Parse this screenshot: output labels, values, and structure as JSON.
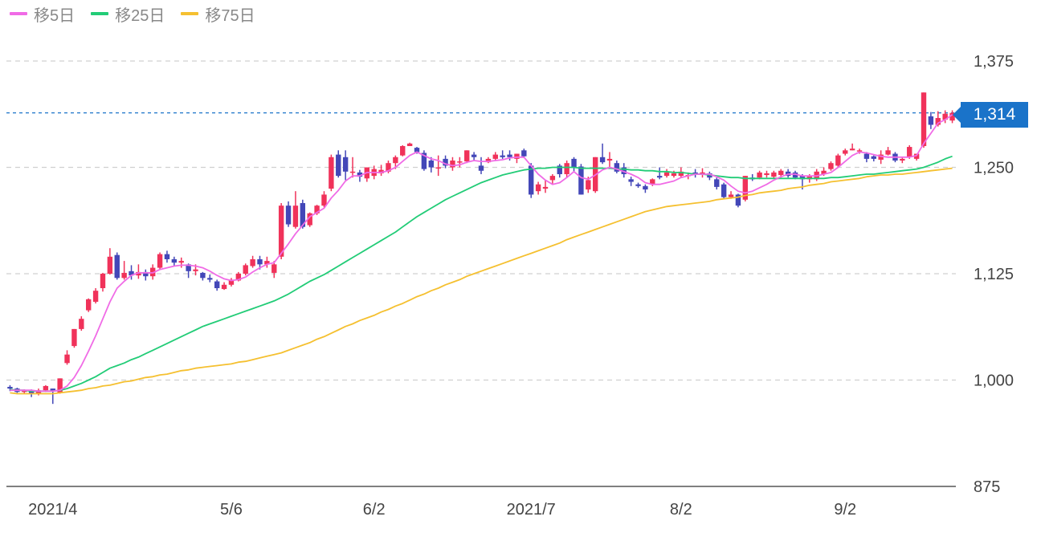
{
  "legend": [
    {
      "label": "移5日",
      "color": "#f06be6"
    },
    {
      "label": "移25日",
      "color": "#22cc77"
    },
    {
      "label": "移75日",
      "color": "#f5c030"
    }
  ],
  "current_price_label": "1,314",
  "colors": {
    "up": "#f0325a",
    "down": "#4347b8",
    "ma5": "#f06be6",
    "ma25": "#22cc77",
    "ma75": "#f5c030",
    "price_line": "#1a73c9",
    "grid": "#d0d0d0"
  },
  "chart_data": {
    "type": "candlestick",
    "ylim": [
      875,
      1375
    ],
    "y_ticks": [
      "1,375",
      "1,250",
      "1,125",
      "1,000",
      "875"
    ],
    "y_tick_values": [
      1375,
      1250,
      1125,
      1000,
      875
    ],
    "x_tick_labels": [
      "2021/4",
      "5/6",
      "6/2",
      "2021/7",
      "8/2",
      "9/2"
    ],
    "x_tick_index": [
      6,
      31,
      51,
      73,
      94,
      117
    ],
    "current_price": 1314,
    "candles": [
      [
        992,
        990,
        994,
        987
      ],
      [
        990,
        986,
        991,
        985
      ],
      [
        986,
        988,
        989,
        984
      ],
      [
        988,
        984,
        989,
        980
      ],
      [
        984,
        988,
        990,
        982
      ],
      [
        988,
        993,
        994,
        986
      ],
      [
        990,
        987,
        990,
        972
      ],
      [
        985,
        1002,
        1002,
        984
      ],
      [
        1020,
        1030,
        1035,
        1018
      ],
      [
        1040,
        1060,
        1060,
        1038
      ],
      [
        1060,
        1072,
        1075,
        1058
      ],
      [
        1082,
        1095,
        1096,
        1080
      ],
      [
        1092,
        1105,
        1108,
        1090
      ],
      [
        1108,
        1125,
        1126,
        1104
      ],
      [
        1125,
        1145,
        1155,
        1124
      ],
      [
        1147,
        1120,
        1150,
        1118
      ],
      [
        1120,
        1126,
        1140,
        1118
      ],
      [
        1128,
        1123,
        1135,
        1118
      ],
      [
        1123,
        1127,
        1136,
        1119
      ],
      [
        1127,
        1122,
        1130,
        1117
      ],
      [
        1122,
        1132,
        1136,
        1118
      ],
      [
        1132,
        1148,
        1150,
        1130
      ],
      [
        1148,
        1142,
        1152,
        1138
      ],
      [
        1142,
        1138,
        1145,
        1134
      ],
      [
        1138,
        1140,
        1144,
        1132
      ],
      [
        1136,
        1128,
        1137,
        1120
      ],
      [
        1128,
        1130,
        1136,
        1123
      ],
      [
        1126,
        1120,
        1127,
        1117
      ],
      [
        1120,
        1118,
        1124,
        1115
      ],
      [
        1116,
        1108,
        1118,
        1105
      ],
      [
        1107,
        1112,
        1115,
        1106
      ],
      [
        1112,
        1118,
        1120,
        1110
      ],
      [
        1117,
        1125,
        1127,
        1116
      ],
      [
        1125,
        1135,
        1137,
        1123
      ],
      [
        1134,
        1142,
        1146,
        1132
      ],
      [
        1142,
        1136,
        1146,
        1130
      ],
      [
        1136,
        1140,
        1145,
        1132
      ],
      [
        1126,
        1136,
        1140,
        1120
      ],
      [
        1145,
        1205,
        1208,
        1142
      ],
      [
        1205,
        1183,
        1210,
        1180
      ],
      [
        1180,
        1205,
        1222,
        1178
      ],
      [
        1208,
        1180,
        1212,
        1178
      ],
      [
        1182,
        1196,
        1197,
        1180
      ],
      [
        1196,
        1205,
        1206,
        1194
      ],
      [
        1205,
        1218,
        1222,
        1203
      ],
      [
        1225,
        1262,
        1265,
        1222
      ],
      [
        1265,
        1240,
        1270,
        1238
      ],
      [
        1262,
        1245,
        1270,
        1235
      ],
      [
        1245,
        1245,
        1262,
        1238
      ],
      [
        1244,
        1239,
        1247,
        1233
      ],
      [
        1237,
        1250,
        1250,
        1233
      ],
      [
        1240,
        1248,
        1252,
        1236
      ],
      [
        1243,
        1247,
        1253,
        1240
      ],
      [
        1245,
        1255,
        1258,
        1243
      ],
      [
        1255,
        1262,
        1264,
        1248
      ],
      [
        1264,
        1275,
        1276,
        1263
      ],
      [
        1275,
        1278,
        1279,
        1276
      ],
      [
        1273,
        1268,
        1274,
        1266
      ],
      [
        1267,
        1248,
        1270,
        1246
      ],
      [
        1258,
        1250,
        1262,
        1244
      ],
      [
        1250,
        1250,
        1264,
        1240
      ],
      [
        1260,
        1252,
        1264,
        1249
      ],
      [
        1250,
        1258,
        1262,
        1246
      ],
      [
        1256,
        1257,
        1262,
        1250
      ],
      [
        1257,
        1270,
        1270,
        1255
      ],
      [
        1265,
        1262,
        1268,
        1258
      ],
      [
        1252,
        1246,
        1262,
        1242
      ],
      [
        1256,
        1260,
        1262,
        1255
      ],
      [
        1260,
        1265,
        1268,
        1258
      ],
      [
        1264,
        1262,
        1270,
        1260
      ],
      [
        1265,
        1262,
        1270,
        1258
      ],
      [
        1260,
        1266,
        1266,
        1255
      ],
      [
        1270,
        1263,
        1272,
        1261
      ],
      [
        1252,
        1218,
        1255,
        1214
      ],
      [
        1222,
        1230,
        1233,
        1218
      ],
      [
        1225,
        1227,
        1235,
        1220
      ],
      [
        1235,
        1240,
        1242,
        1230
      ],
      [
        1252,
        1242,
        1254,
        1238
      ],
      [
        1242,
        1255,
        1258,
        1238
      ],
      [
        1260,
        1250,
        1262,
        1244
      ],
      [
        1251,
        1218,
        1254,
        1218
      ],
      [
        1224,
        1235,
        1239,
        1220
      ],
      [
        1222,
        1262,
        1262,
        1220
      ],
      [
        1262,
        1256,
        1278,
        1254
      ],
      [
        1258,
        1260,
        1268,
        1248
      ],
      [
        1255,
        1245,
        1258,
        1243
      ],
      [
        1250,
        1242,
        1255,
        1238
      ],
      [
        1236,
        1233,
        1239,
        1228
      ],
      [
        1230,
        1228,
        1232,
        1226
      ],
      [
        1228,
        1224,
        1230,
        1220
      ],
      [
        1230,
        1236,
        1237,
        1228
      ],
      [
        1240,
        1238,
        1250,
        1236
      ],
      [
        1240,
        1244,
        1248,
        1238
      ],
      [
        1240,
        1243,
        1246,
        1238
      ],
      [
        1240,
        1245,
        1250,
        1238
      ],
      [
        1240,
        1241,
        1244,
        1236
      ],
      [
        1244,
        1242,
        1248,
        1238
      ],
      [
        1242,
        1244,
        1249,
        1238
      ],
      [
        1243,
        1238,
        1245,
        1235
      ],
      [
        1236,
        1227,
        1238,
        1224
      ],
      [
        1230,
        1215,
        1232,
        1213
      ],
      [
        1215,
        1218,
        1222,
        1213
      ],
      [
        1218,
        1205,
        1219,
        1203
      ],
      [
        1212,
        1240,
        1240,
        1210
      ],
      [
        1238,
        1236,
        1242,
        1234
      ],
      [
        1238,
        1244,
        1246,
        1236
      ],
      [
        1241,
        1243,
        1246,
        1238
      ],
      [
        1239,
        1244,
        1246,
        1237
      ],
      [
        1241,
        1246,
        1248,
        1238
      ],
      [
        1245,
        1240,
        1248,
        1238
      ],
      [
        1244,
        1238,
        1246,
        1236
      ],
      [
        1240,
        1236,
        1242,
        1224
      ],
      [
        1236,
        1240,
        1242,
        1232
      ],
      [
        1236,
        1245,
        1248,
        1234
      ],
      [
        1242,
        1246,
        1250,
        1240
      ],
      [
        1248,
        1255,
        1257,
        1246
      ],
      [
        1252,
        1264,
        1266,
        1250
      ],
      [
        1266,
        1270,
        1272,
        1264
      ],
      [
        1270,
        1272,
        1278,
        1270
      ],
      [
        1270,
        1270,
        1272,
        1266
      ],
      [
        1266,
        1260,
        1268,
        1256
      ],
      [
        1263,
        1260,
        1264,
        1257
      ],
      [
        1259,
        1265,
        1270,
        1254
      ],
      [
        1265,
        1270,
        1274,
        1264
      ],
      [
        1266,
        1258,
        1268,
        1256
      ],
      [
        1258,
        1260,
        1262,
        1255
      ],
      [
        1262,
        1274,
        1276,
        1260
      ],
      [
        1260,
        1266,
        1266,
        1258
      ],
      [
        1275,
        1338,
        1338,
        1273
      ],
      [
        1310,
        1300,
        1315,
        1295
      ],
      [
        1300,
        1308,
        1316,
        1298
      ],
      [
        1306,
        1313,
        1317,
        1302
      ],
      [
        1305,
        1314,
        1317,
        1302
      ]
    ],
    "ma5": [
      988,
      988,
      988,
      988,
      987,
      987,
      987,
      988,
      993,
      1003,
      1017,
      1034,
      1052,
      1072,
      1092,
      1108,
      1116,
      1123,
      1126,
      1126,
      1126,
      1130,
      1132,
      1134,
      1135,
      1135,
      1134,
      1132,
      1128,
      1123,
      1119,
      1117,
      1118,
      1121,
      1127,
      1132,
      1136,
      1138,
      1149,
      1160,
      1172,
      1182,
      1192,
      1197,
      1202,
      1214,
      1223,
      1234,
      1240,
      1240,
      1244,
      1244,
      1244,
      1246,
      1250,
      1257,
      1264,
      1268,
      1264,
      1260,
      1258,
      1254,
      1252,
      1253,
      1256,
      1258,
      1257,
      1257,
      1258,
      1259,
      1261,
      1262,
      1262,
      1252,
      1242,
      1235,
      1230,
      1232,
      1238,
      1245,
      1238,
      1236,
      1241,
      1247,
      1250,
      1248,
      1245,
      1242,
      1238,
      1232,
      1230,
      1230,
      1232,
      1234,
      1238,
      1240,
      1242,
      1242,
      1242,
      1239,
      1235,
      1228,
      1222,
      1220,
      1222,
      1226,
      1230,
      1235,
      1239,
      1242,
      1242,
      1240,
      1240,
      1240,
      1242,
      1244,
      1250,
      1257,
      1264,
      1268,
      1267,
      1265,
      1263,
      1262,
      1262,
      1262,
      1262,
      1264,
      1278,
      1290,
      1302,
      1306,
      1312
    ],
    "ma25": [
      989,
      988,
      988,
      987,
      987,
      987,
      987,
      988,
      990,
      993,
      996,
      1000,
      1004,
      1009,
      1014,
      1017,
      1020,
      1024,
      1027,
      1031,
      1035,
      1039,
      1043,
      1047,
      1051,
      1055,
      1059,
      1063,
      1066,
      1069,
      1072,
      1075,
      1078,
      1081,
      1084,
      1087,
      1090,
      1093,
      1097,
      1101,
      1106,
      1111,
      1116,
      1120,
      1124,
      1129,
      1134,
      1139,
      1144,
      1149,
      1154,
      1159,
      1164,
      1169,
      1174,
      1180,
      1186,
      1192,
      1197,
      1202,
      1207,
      1212,
      1216,
      1220,
      1224,
      1228,
      1232,
      1235,
      1238,
      1241,
      1243,
      1245,
      1247,
      1248,
      1249,
      1249,
      1250,
      1250,
      1250,
      1250,
      1249,
      1249,
      1249,
      1249,
      1249,
      1248,
      1248,
      1247,
      1247,
      1246,
      1246,
      1245,
      1245,
      1244,
      1244,
      1243,
      1242,
      1242,
      1241,
      1240,
      1239,
      1238,
      1238,
      1237,
      1237,
      1237,
      1237,
      1237,
      1237,
      1237,
      1237,
      1237,
      1237,
      1237,
      1237,
      1238,
      1238,
      1239,
      1240,
      1241,
      1242,
      1242,
      1243,
      1244,
      1245,
      1246,
      1247,
      1248,
      1250,
      1253,
      1256,
      1260,
      1263
    ],
    "ma75": [
      985,
      984,
      984,
      984,
      984,
      984,
      984,
      985,
      986,
      987,
      988,
      990,
      991,
      993,
      994,
      996,
      998,
      999,
      1001,
      1003,
      1004,
      1006,
      1007,
      1009,
      1011,
      1012,
      1014,
      1015,
      1016,
      1017,
      1018,
      1019,
      1021,
      1022,
      1024,
      1026,
      1028,
      1030,
      1032,
      1035,
      1038,
      1041,
      1044,
      1048,
      1051,
      1055,
      1059,
      1063,
      1066,
      1070,
      1073,
      1076,
      1080,
      1083,
      1087,
      1090,
      1094,
      1098,
      1101,
      1105,
      1108,
      1112,
      1115,
      1118,
      1122,
      1125,
      1128,
      1131,
      1134,
      1137,
      1140,
      1143,
      1146,
      1149,
      1152,
      1155,
      1158,
      1161,
      1165,
      1168,
      1171,
      1174,
      1177,
      1180,
      1183,
      1186,
      1189,
      1192,
      1195,
      1198,
      1200,
      1202,
      1204,
      1205,
      1206,
      1207,
      1208,
      1209,
      1210,
      1212,
      1213,
      1214,
      1215,
      1217,
      1218,
      1220,
      1221,
      1222,
      1223,
      1225,
      1226,
      1227,
      1229,
      1230,
      1231,
      1233,
      1234,
      1235,
      1236,
      1237,
      1239,
      1240,
      1241,
      1241,
      1242,
      1242,
      1243,
      1244,
      1245,
      1246,
      1247,
      1248,
      1249
    ]
  }
}
